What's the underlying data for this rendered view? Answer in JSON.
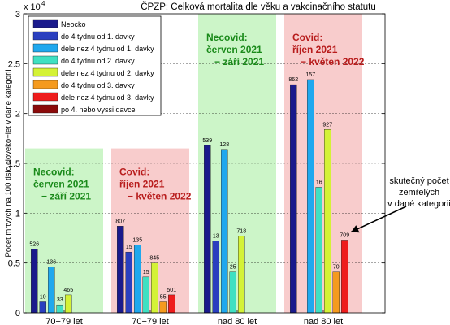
{
  "chart_data": {
    "type": "bar",
    "title": "ČPZP: Celková mortalita dle věku a vakcinačního statutu",
    "ylabel": "Pocet mrtvych na 100 tisic cloveko−let v dane kategorii",
    "y_exponent_label": "x 10",
    "y_exponent_power": "4",
    "ylim": [
      0,
      30000
    ],
    "y_ticks": [
      {
        "value": 0,
        "label": "0"
      },
      {
        "value": 5000,
        "label": "0.5"
      },
      {
        "value": 10000,
        "label": "1"
      },
      {
        "value": 15000,
        "label": "1.5"
      },
      {
        "value": 20000,
        "label": "2"
      },
      {
        "value": 25000,
        "label": "2.5"
      },
      {
        "value": 30000,
        "label": "3"
      }
    ],
    "grid": true,
    "legend_position": "top-left",
    "categories": [
      "70−79 let",
      "70−79 let",
      "nad 80 let",
      "nad 80 let"
    ],
    "periods": [
      {
        "line1": "Necovid:",
        "line2": "červen 2021",
        "line3": "− září 2021",
        "kind": "necovid",
        "bg": "#ccf5c8",
        "text_color": "#1a8a1a"
      },
      {
        "line1": "Covid:",
        "line2": "říjen 2021",
        "line3": "− květen 2022",
        "kind": "covid",
        "bg": "#f8cccc",
        "text_color": "#b81c1c"
      },
      {
        "line1": "Necovid:",
        "line2": "červen 2021",
        "line3": "− září 2021",
        "kind": "necovid",
        "bg": "#ccf5c8",
        "text_color": "#1a8a1a"
      },
      {
        "line1": "Covid:",
        "line2": "říjen 2021",
        "line3": "− květen 2022",
        "kind": "covid",
        "bg": "#f8cccc",
        "text_color": "#b81c1c"
      }
    ],
    "series": [
      {
        "name": "Neocko",
        "color": "#1a1a8c",
        "values": [
          6400,
          8700,
          16800,
          22900
        ],
        "labels": [
          "526",
          "807",
          "539",
          "862"
        ]
      },
      {
        "name": "do 4 tydnu od 1. davky",
        "color": "#2a3fbf",
        "values": [
          1100,
          6100,
          7200,
          null
        ],
        "labels": [
          "10",
          "15",
          "13",
          ""
        ]
      },
      {
        "name": "dele nez 4 tydnu od 1. davky",
        "color": "#1fa8ee",
        "values": [
          4600,
          6800,
          16400,
          23400
        ],
        "labels": [
          "136",
          "135",
          "128",
          "157"
        ]
      },
      {
        "name": "do 4 tydnu od 2. davky",
        "color": "#3fe0c2",
        "values": [
          800,
          3600,
          4100,
          12600
        ],
        "labels": [
          "33",
          "15",
          "25",
          "16"
        ]
      },
      {
        "name": "dele nez 4 tydnu od 2. davky",
        "color": "#d4f236",
        "values": [
          1800,
          5000,
          7700,
          18400
        ],
        "labels": [
          "465",
          "845",
          "718",
          "927"
        ]
      },
      {
        "name": "do 4 tydnu od 3. davky",
        "color": "#f59a1e",
        "values": [
          null,
          1100,
          null,
          4100
        ],
        "labels": [
          "",
          "55",
          "",
          "70"
        ]
      },
      {
        "name": "dele nez 4 tydnu od 3. davky",
        "color": "#ee1c1c",
        "values": [
          null,
          1800,
          null,
          7300
        ],
        "labels": [
          "",
          "501",
          "",
          "709"
        ]
      },
      {
        "name": "po 4. nebo vyssi davce",
        "color": "#8b0a0a",
        "values": [
          null,
          null,
          null,
          null
        ],
        "labels": [
          "",
          "",
          "",
          ""
        ]
      }
    ],
    "annotation": {
      "lines": [
        "skutečný počet",
        "zemřelých",
        "v dané kategorii"
      ],
      "target": {
        "group": 3,
        "series": 6
      }
    }
  }
}
